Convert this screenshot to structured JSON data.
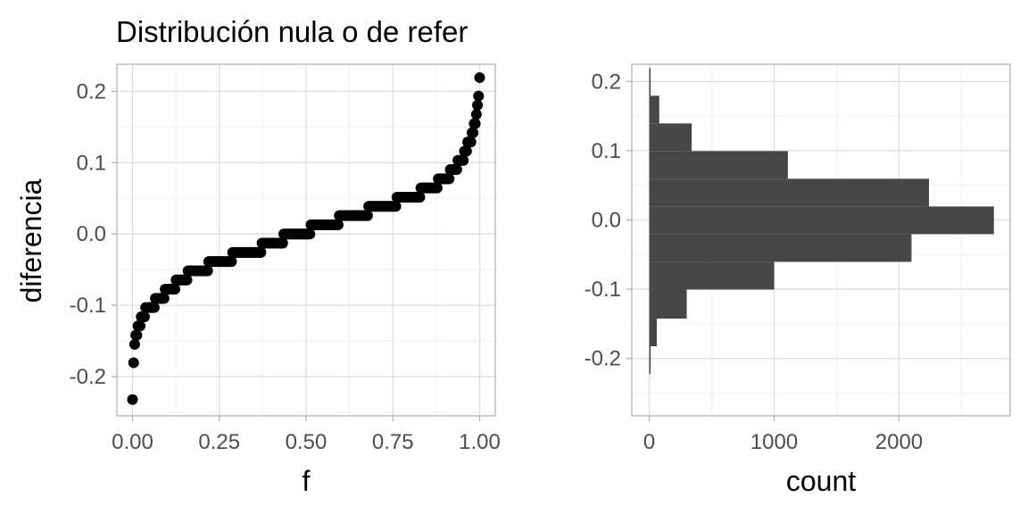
{
  "title": "Distribución nula o de refer",
  "chart_data": [
    {
      "type": "scatter",
      "xlabel": "f",
      "ylabel": "diferencia",
      "xlim": [
        -0.045,
        1.045
      ],
      "ylim": [
        -0.255,
        0.238
      ],
      "xticks": [
        0,
        0.25,
        0.5,
        0.75,
        1
      ],
      "xtick_labels": [
        "0.00",
        "0.25",
        "0.50",
        "0.75",
        "1.00"
      ],
      "yticks": [
        -0.2,
        -0.1,
        0.0,
        0.1,
        0.2
      ],
      "ytick_labels": [
        "-0.2",
        "-0.1",
        "0.0",
        "0.1",
        "0.2"
      ],
      "grid": true,
      "point_color": "#000000",
      "quantile_curve": [
        [
          0.0,
          -0.232
        ],
        [
          0.0015,
          -0.2
        ],
        [
          0.004,
          -0.176
        ],
        [
          0.008,
          -0.15
        ],
        [
          0.015,
          -0.135
        ],
        [
          0.03,
          -0.112
        ],
        [
          0.06,
          -0.098
        ],
        [
          0.1,
          -0.08
        ],
        [
          0.15,
          -0.06
        ],
        [
          0.22,
          -0.045
        ],
        [
          0.3,
          -0.03
        ],
        [
          0.38,
          -0.018
        ],
        [
          0.45,
          -0.003
        ],
        [
          0.55,
          0.012
        ],
        [
          0.63,
          0.025
        ],
        [
          0.72,
          0.038
        ],
        [
          0.8,
          0.052
        ],
        [
          0.86,
          0.065
        ],
        [
          0.9,
          0.078
        ],
        [
          0.93,
          0.092
        ],
        [
          0.955,
          0.11
        ],
        [
          0.975,
          0.135
        ],
        [
          0.988,
          0.16
        ],
        [
          0.995,
          0.19
        ],
        [
          1.0,
          0.215
        ]
      ]
    },
    {
      "type": "bar",
      "orientation": "horizontal",
      "xlabel": "count",
      "ylabel": "",
      "xlim": [
        -140,
        2890
      ],
      "ylim": [
        -0.283,
        0.225
      ],
      "xticks": [
        0,
        1000,
        2000
      ],
      "xtick_labels": [
        "0",
        "1000",
        "2000"
      ],
      "yticks": [
        -0.2,
        -0.1,
        0.0,
        0.1,
        0.2
      ],
      "ytick_labels": [
        "-0.2",
        "-0.1",
        "0.0",
        "0.1",
        "0.2"
      ],
      "grid": true,
      "bar_color": "#474747",
      "bins": [
        {
          "y0": -0.2225,
          "y1": -0.1825,
          "count": 5
        },
        {
          "y0": -0.1825,
          "y1": -0.1425,
          "count": 60
        },
        {
          "y0": -0.1425,
          "y1": -0.1005,
          "count": 300
        },
        {
          "y0": -0.1005,
          "y1": -0.0605,
          "count": 1000
        },
        {
          "y0": -0.0605,
          "y1": -0.0205,
          "count": 2100
        },
        {
          "y0": -0.0205,
          "y1": 0.0195,
          "count": 2760
        },
        {
          "y0": 0.0195,
          "y1": 0.0595,
          "count": 2240
        },
        {
          "y0": 0.0595,
          "y1": 0.0995,
          "count": 1110
        },
        {
          "y0": 0.0995,
          "y1": 0.1395,
          "count": 340
        },
        {
          "y0": 0.1395,
          "y1": 0.1795,
          "count": 80
        },
        {
          "y0": 0.1795,
          "y1": 0.2195,
          "count": 8
        }
      ]
    }
  ]
}
